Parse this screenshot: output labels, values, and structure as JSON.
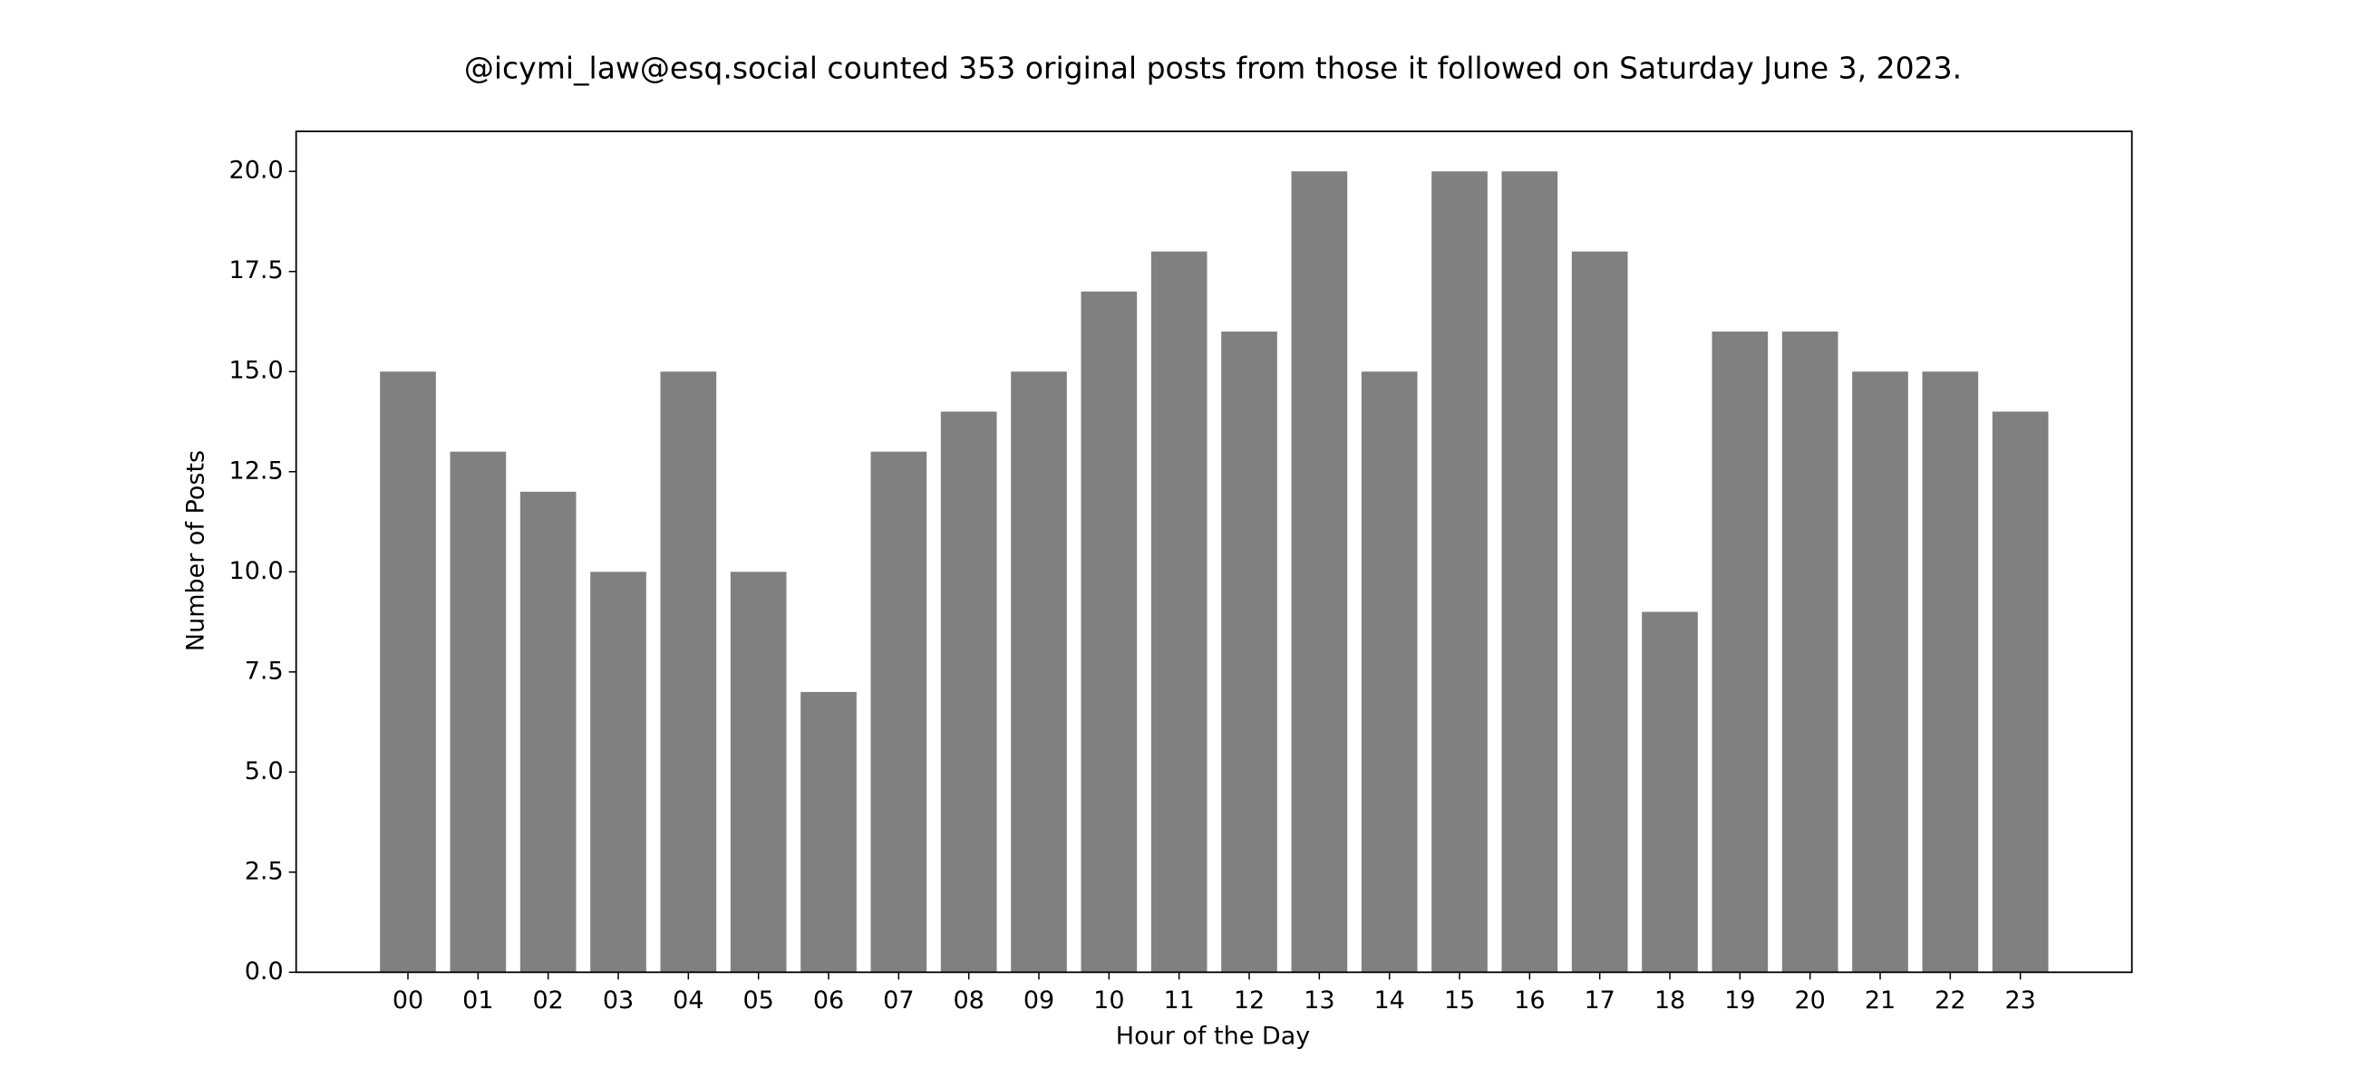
{
  "chart_data": {
    "type": "bar",
    "title": "@icymi_law@esq.social counted 353 original posts from those it followed on Saturday June 3, 2023.",
    "x_label": "Hour of the Day",
    "y_label": "Number of Posts",
    "categories": [
      "00",
      "01",
      "02",
      "03",
      "04",
      "05",
      "06",
      "07",
      "08",
      "09",
      "10",
      "11",
      "12",
      "13",
      "14",
      "15",
      "16",
      "17",
      "18",
      "19",
      "20",
      "21",
      "22",
      "23"
    ],
    "values": [
      15,
      13,
      12,
      10,
      15,
      10,
      7,
      13,
      14,
      15,
      17,
      18,
      16,
      20,
      15,
      20,
      20,
      18,
      9,
      16,
      16,
      15,
      15,
      14
    ],
    "color": "#808080",
    "ylim": [
      0,
      21
    ],
    "yticks": [
      {
        "value": 0,
        "label": "0.0"
      },
      2.5,
      {
        "value": 5,
        "label": "5.0"
      },
      7.5,
      {
        "value": 10,
        "label": "10.0"
      },
      12.5,
      {
        "value": 15,
        "label": "15.0"
      },
      17.5,
      {
        "value": 20,
        "label": "20.0"
      }
    ],
    "grid": false
  }
}
